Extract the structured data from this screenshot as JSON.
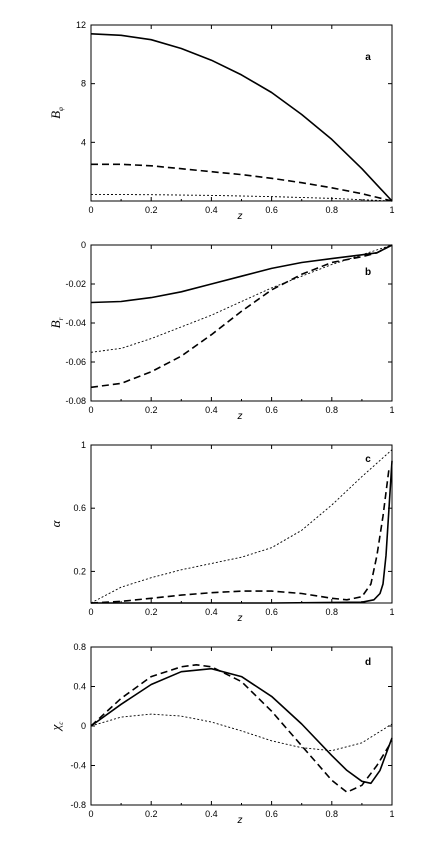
{
  "chart_data": [
    {
      "type": "line",
      "panel_label": "a",
      "xlabel": "z",
      "ylabel": {
        "main": "B",
        "sub": "φ"
      },
      "xlim": [
        0,
        1
      ],
      "ylim": [
        0,
        12
      ],
      "xticks": [
        "0",
        "0.2",
        "0.4",
        "0.6",
        "0.8",
        "1"
      ],
      "yticks": [
        {
          "v": 4,
          "label": "4"
        },
        {
          "v": 8,
          "label": "8"
        },
        {
          "v": 12,
          "label": "12"
        }
      ],
      "series": [
        {
          "style": "solid",
          "x": [
            0,
            0.1,
            0.2,
            0.3,
            0.4,
            0.5,
            0.6,
            0.7,
            0.8,
            0.9,
            1.0
          ],
          "values": [
            11.4,
            11.3,
            11.0,
            10.4,
            9.6,
            8.6,
            7.4,
            5.9,
            4.2,
            2.2,
            0
          ]
        },
        {
          "style": "dashed",
          "x": [
            0,
            0.1,
            0.2,
            0.3,
            0.4,
            0.5,
            0.6,
            0.7,
            0.8,
            0.9,
            1.0
          ],
          "values": [
            2.5,
            2.5,
            2.4,
            2.2,
            2.0,
            1.8,
            1.55,
            1.25,
            0.9,
            0.5,
            0
          ]
        },
        {
          "style": "dotted",
          "x": [
            0,
            0.2,
            0.4,
            0.6,
            0.8,
            1.0
          ],
          "values": [
            0.45,
            0.43,
            0.38,
            0.3,
            0.18,
            0
          ]
        }
      ]
    },
    {
      "type": "line",
      "panel_label": "b",
      "xlabel": "z",
      "ylabel": {
        "main": "B",
        "sub": "r"
      },
      "xlim": [
        0,
        1
      ],
      "ylim": [
        -0.08,
        0
      ],
      "xticks": [
        "0",
        "0.2",
        "0.4",
        "0.6",
        "0.8",
        "1"
      ],
      "yticks": [
        {
          "v": -0.08,
          "label": "-0.08"
        },
        {
          "v": -0.06,
          "label": "-0.06"
        },
        {
          "v": -0.04,
          "label": "-0.04"
        },
        {
          "v": -0.02,
          "label": "-0.02"
        },
        {
          "v": 0,
          "label": "0"
        }
      ],
      "series": [
        {
          "style": "solid",
          "x": [
            0,
            0.1,
            0.2,
            0.3,
            0.4,
            0.5,
            0.6,
            0.7,
            0.8,
            0.9,
            0.95,
            1.0
          ],
          "values": [
            -0.0295,
            -0.029,
            -0.027,
            -0.024,
            -0.02,
            -0.016,
            -0.012,
            -0.009,
            -0.007,
            -0.005,
            -0.004,
            0
          ]
        },
        {
          "style": "dashed",
          "x": [
            0,
            0.1,
            0.2,
            0.3,
            0.4,
            0.5,
            0.6,
            0.7,
            0.8,
            0.9,
            0.95,
            1.0
          ],
          "values": [
            -0.073,
            -0.071,
            -0.065,
            -0.057,
            -0.046,
            -0.034,
            -0.023,
            -0.015,
            -0.009,
            -0.006,
            -0.004,
            0
          ]
        },
        {
          "style": "dotted",
          "x": [
            0,
            0.1,
            0.2,
            0.3,
            0.4,
            0.5,
            0.6,
            0.7,
            0.8,
            0.9,
            1.0
          ],
          "values": [
            -0.055,
            -0.053,
            -0.048,
            -0.042,
            -0.036,
            -0.029,
            -0.022,
            -0.016,
            -0.01,
            -0.005,
            0
          ]
        }
      ]
    },
    {
      "type": "line",
      "panel_label": "c",
      "xlabel": "z",
      "ylabel": {
        "main": "α",
        "sub": ""
      },
      "xlim": [
        0,
        1
      ],
      "ylim": [
        0,
        1
      ],
      "xticks": [
        "0",
        "0.2",
        "0.4",
        "0.6",
        "0.8",
        "1"
      ],
      "yticks": [
        {
          "v": 0.2,
          "label": "0.2"
        },
        {
          "v": 0.6,
          "label": "0.6"
        },
        {
          "v": 1,
          "label": "1"
        }
      ],
      "series": [
        {
          "style": "solid",
          "x": [
            0,
            0.3,
            0.6,
            0.9,
            0.94,
            0.96,
            0.97,
            0.98,
            0.99,
            1.0
          ],
          "values": [
            0,
            0,
            0,
            0.005,
            0.02,
            0.06,
            0.12,
            0.3,
            0.6,
            0.9
          ]
        },
        {
          "style": "dashed",
          "x": [
            0,
            0.1,
            0.2,
            0.3,
            0.4,
            0.5,
            0.6,
            0.7,
            0.8,
            0.85,
            0.9,
            0.93,
            0.95,
            0.97,
            0.99
          ],
          "values": [
            0,
            0.01,
            0.03,
            0.05,
            0.065,
            0.075,
            0.075,
            0.06,
            0.03,
            0.02,
            0.04,
            0.12,
            0.3,
            0.55,
            0.85
          ]
        },
        {
          "style": "dotted",
          "x": [
            0,
            0.1,
            0.2,
            0.3,
            0.4,
            0.5,
            0.6,
            0.7,
            0.8,
            0.9,
            1.0
          ],
          "values": [
            0,
            0.1,
            0.16,
            0.21,
            0.25,
            0.29,
            0.35,
            0.46,
            0.62,
            0.8,
            0.97
          ]
        }
      ]
    },
    {
      "type": "line",
      "panel_label": "d",
      "xlabel": "z",
      "ylabel": {
        "main": "χ",
        "sub": "c"
      },
      "xlim": [
        0,
        1
      ],
      "ylim": [
        -0.8,
        0.8
      ],
      "xticks": [
        "0",
        "0.2",
        "0.4",
        "0.6",
        "0.8",
        "1"
      ],
      "yticks": [
        {
          "v": -0.8,
          "label": "-0.8"
        },
        {
          "v": -0.4,
          "label": "-0.4"
        },
        {
          "v": 0,
          "label": "0"
        },
        {
          "v": 0.4,
          "label": "0.4"
        },
        {
          "v": 0.8,
          "label": "0.8"
        }
      ],
      "series": [
        {
          "style": "solid",
          "x": [
            0,
            0.1,
            0.2,
            0.3,
            0.4,
            0.5,
            0.6,
            0.7,
            0.8,
            0.85,
            0.9,
            0.93,
            0.96,
            1.0
          ],
          "values": [
            0,
            0.22,
            0.42,
            0.55,
            0.58,
            0.5,
            0.3,
            0.02,
            -0.3,
            -0.45,
            -0.56,
            -0.58,
            -0.45,
            -0.12
          ]
        },
        {
          "style": "dashed",
          "x": [
            0,
            0.1,
            0.2,
            0.3,
            0.35,
            0.4,
            0.5,
            0.6,
            0.7,
            0.8,
            0.85,
            0.9,
            0.95,
            1.0
          ],
          "values": [
            0,
            0.28,
            0.5,
            0.6,
            0.62,
            0.6,
            0.45,
            0.15,
            -0.2,
            -0.55,
            -0.67,
            -0.6,
            -0.4,
            -0.15
          ]
        },
        {
          "style": "dotted",
          "x": [
            0,
            0.1,
            0.2,
            0.3,
            0.4,
            0.5,
            0.6,
            0.7,
            0.8,
            0.9,
            1.0
          ],
          "values": [
            0,
            0.09,
            0.12,
            0.1,
            0.04,
            -0.05,
            -0.15,
            -0.22,
            -0.25,
            -0.17,
            0.02
          ]
        }
      ]
    }
  ]
}
